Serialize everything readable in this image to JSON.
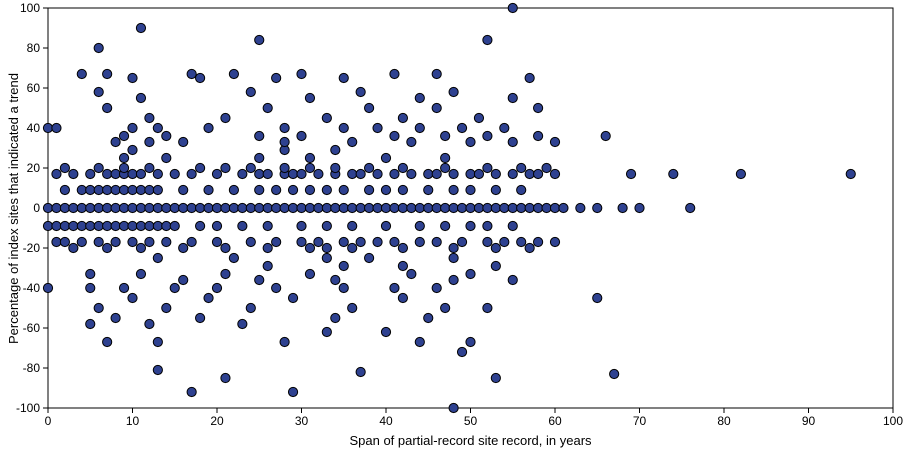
{
  "chart_data": {
    "type": "scatter",
    "title": "",
    "xlabel": "Span of partial-record site record, in years",
    "ylabel": "Percentage of index sites that indicated a trend",
    "xlim": [
      0,
      100
    ],
    "ylim": [
      -100,
      100
    ],
    "xticks": [
      0,
      10,
      20,
      30,
      40,
      50,
      60,
      70,
      80,
      90,
      100
    ],
    "yticks": [
      -100,
      -80,
      -60,
      -40,
      -20,
      0,
      20,
      40,
      60,
      80,
      100
    ],
    "grid": false,
    "legend": null,
    "marker": {
      "shape": "circle",
      "fill": "#2e4190",
      "stroke": "#000000",
      "radius": 4.6
    },
    "points": [
      [
        0,
        0
      ],
      [
        1,
        0
      ],
      [
        2,
        0
      ],
      [
        3,
        0
      ],
      [
        4,
        0
      ],
      [
        5,
        0
      ],
      [
        6,
        0
      ],
      [
        7,
        0
      ],
      [
        8,
        0
      ],
      [
        9,
        0
      ],
      [
        10,
        0
      ],
      [
        11,
        0
      ],
      [
        12,
        0
      ],
      [
        13,
        0
      ],
      [
        14,
        0
      ],
      [
        15,
        0
      ],
      [
        16,
        0
      ],
      [
        17,
        0
      ],
      [
        18,
        0
      ],
      [
        19,
        0
      ],
      [
        20,
        0
      ],
      [
        21,
        0
      ],
      [
        22,
        0
      ],
      [
        23,
        0
      ],
      [
        24,
        0
      ],
      [
        25,
        0
      ],
      [
        26,
        0
      ],
      [
        27,
        0
      ],
      [
        28,
        0
      ],
      [
        29,
        0
      ],
      [
        30,
        0
      ],
      [
        31,
        0
      ],
      [
        32,
        0
      ],
      [
        33,
        0
      ],
      [
        34,
        0
      ],
      [
        35,
        0
      ],
      [
        36,
        0
      ],
      [
        37,
        0
      ],
      [
        38,
        0
      ],
      [
        39,
        0
      ],
      [
        40,
        0
      ],
      [
        41,
        0
      ],
      [
        42,
        0
      ],
      [
        43,
        0
      ],
      [
        44,
        0
      ],
      [
        45,
        0
      ],
      [
        46,
        0
      ],
      [
        47,
        0
      ],
      [
        48,
        0
      ],
      [
        49,
        0
      ],
      [
        50,
        0
      ],
      [
        51,
        0
      ],
      [
        52,
        0
      ],
      [
        53,
        0
      ],
      [
        54,
        0
      ],
      [
        55,
        0
      ],
      [
        56,
        0
      ],
      [
        57,
        0
      ],
      [
        58,
        0
      ],
      [
        59,
        0
      ],
      [
        60,
        0
      ],
      [
        61,
        0
      ],
      [
        63,
        0
      ],
      [
        65,
        0
      ],
      [
        68,
        0
      ],
      [
        70,
        0
      ],
      [
        76,
        0
      ],
      [
        2,
        9
      ],
      [
        4,
        9
      ],
      [
        5,
        9
      ],
      [
        6,
        9
      ],
      [
        7,
        9
      ],
      [
        8,
        9
      ],
      [
        9,
        9
      ],
      [
        10,
        9
      ],
      [
        11,
        9
      ],
      [
        12,
        9
      ],
      [
        13,
        9
      ],
      [
        16,
        9
      ],
      [
        19,
        9
      ],
      [
        22,
        9
      ],
      [
        25,
        9
      ],
      [
        27,
        9
      ],
      [
        29,
        9
      ],
      [
        31,
        9
      ],
      [
        33,
        9
      ],
      [
        35,
        9
      ],
      [
        38,
        9
      ],
      [
        40,
        9
      ],
      [
        42,
        9
      ],
      [
        45,
        9
      ],
      [
        48,
        9
      ],
      [
        50,
        9
      ],
      [
        53,
        9
      ],
      [
        56,
        9
      ],
      [
        1,
        17
      ],
      [
        3,
        17
      ],
      [
        5,
        17
      ],
      [
        7,
        17
      ],
      [
        8,
        17
      ],
      [
        9,
        17
      ],
      [
        10,
        17
      ],
      [
        11,
        17
      ],
      [
        13,
        17
      ],
      [
        15,
        17
      ],
      [
        17,
        17
      ],
      [
        20,
        17
      ],
      [
        23,
        17
      ],
      [
        25,
        17
      ],
      [
        26,
        17
      ],
      [
        28,
        17
      ],
      [
        29,
        17
      ],
      [
        30,
        17
      ],
      [
        32,
        17
      ],
      [
        34,
        17
      ],
      [
        36,
        17
      ],
      [
        37,
        17
      ],
      [
        39,
        17
      ],
      [
        41,
        17
      ],
      [
        43,
        17
      ],
      [
        45,
        17
      ],
      [
        46,
        17
      ],
      [
        48,
        17
      ],
      [
        50,
        17
      ],
      [
        51,
        17
      ],
      [
        53,
        17
      ],
      [
        55,
        17
      ],
      [
        57,
        17
      ],
      [
        58,
        17
      ],
      [
        60,
        17
      ],
      [
        69,
        17
      ],
      [
        74,
        17
      ],
      [
        82,
        17
      ],
      [
        95,
        17
      ],
      [
        2,
        20
      ],
      [
        6,
        20
      ],
      [
        9,
        20
      ],
      [
        12,
        20
      ],
      [
        18,
        20
      ],
      [
        21,
        20
      ],
      [
        24,
        20
      ],
      [
        28,
        20
      ],
      [
        31,
        20
      ],
      [
        34,
        20
      ],
      [
        38,
        20
      ],
      [
        42,
        20
      ],
      [
        47,
        20
      ],
      [
        52,
        20
      ],
      [
        56,
        20
      ],
      [
        59,
        20
      ],
      [
        9,
        25
      ],
      [
        14,
        25
      ],
      [
        25,
        25
      ],
      [
        31,
        25
      ],
      [
        40,
        25
      ],
      [
        47,
        25
      ],
      [
        10,
        29
      ],
      [
        28,
        29
      ],
      [
        34,
        29
      ],
      [
        8,
        33
      ],
      [
        12,
        33
      ],
      [
        16,
        33
      ],
      [
        28,
        33
      ],
      [
        36,
        33
      ],
      [
        43,
        33
      ],
      [
        50,
        33
      ],
      [
        55,
        33
      ],
      [
        60,
        33
      ],
      [
        9,
        36
      ],
      [
        14,
        36
      ],
      [
        25,
        36
      ],
      [
        30,
        36
      ],
      [
        41,
        36
      ],
      [
        47,
        36
      ],
      [
        52,
        36
      ],
      [
        58,
        36
      ],
      [
        66,
        36
      ],
      [
        0,
        40
      ],
      [
        1,
        40
      ],
      [
        10,
        40
      ],
      [
        13,
        40
      ],
      [
        19,
        40
      ],
      [
        28,
        40
      ],
      [
        35,
        40
      ],
      [
        39,
        40
      ],
      [
        44,
        40
      ],
      [
        49,
        40
      ],
      [
        54,
        40
      ],
      [
        12,
        45
      ],
      [
        21,
        45
      ],
      [
        33,
        45
      ],
      [
        42,
        45
      ],
      [
        51,
        45
      ],
      [
        7,
        50
      ],
      [
        26,
        50
      ],
      [
        38,
        50
      ],
      [
        46,
        50
      ],
      [
        58,
        50
      ],
      [
        11,
        55
      ],
      [
        31,
        55
      ],
      [
        44,
        55
      ],
      [
        55,
        55
      ],
      [
        6,
        58
      ],
      [
        24,
        58
      ],
      [
        37,
        58
      ],
      [
        48,
        58
      ],
      [
        10,
        65
      ],
      [
        18,
        65
      ],
      [
        27,
        65
      ],
      [
        35,
        65
      ],
      [
        57,
        65
      ],
      [
        4,
        67
      ],
      [
        7,
        67
      ],
      [
        17,
        67
      ],
      [
        22,
        67
      ],
      [
        30,
        67
      ],
      [
        41,
        67
      ],
      [
        46,
        67
      ],
      [
        6,
        80
      ],
      [
        25,
        84
      ],
      [
        52,
        84
      ],
      [
        11,
        90
      ],
      [
        55,
        100
      ],
      [
        0,
        -9
      ],
      [
        1,
        -9
      ],
      [
        2,
        -9
      ],
      [
        3,
        -9
      ],
      [
        4,
        -9
      ],
      [
        5,
        -9
      ],
      [
        6,
        -9
      ],
      [
        7,
        -9
      ],
      [
        8,
        -9
      ],
      [
        9,
        -9
      ],
      [
        10,
        -9
      ],
      [
        11,
        -9
      ],
      [
        12,
        -9
      ],
      [
        13,
        -9
      ],
      [
        14,
        -9
      ],
      [
        15,
        -9
      ],
      [
        18,
        -9
      ],
      [
        20,
        -9
      ],
      [
        23,
        -9
      ],
      [
        26,
        -9
      ],
      [
        30,
        -9
      ],
      [
        33,
        -9
      ],
      [
        36,
        -9
      ],
      [
        40,
        -9
      ],
      [
        44,
        -9
      ],
      [
        47,
        -9
      ],
      [
        50,
        -9
      ],
      [
        52,
        -9
      ],
      [
        55,
        -9
      ],
      [
        1,
        -17
      ],
      [
        2,
        -17
      ],
      [
        4,
        -17
      ],
      [
        6,
        -17
      ],
      [
        8,
        -17
      ],
      [
        10,
        -17
      ],
      [
        12,
        -17
      ],
      [
        14,
        -17
      ],
      [
        17,
        -17
      ],
      [
        20,
        -17
      ],
      [
        24,
        -17
      ],
      [
        27,
        -17
      ],
      [
        30,
        -17
      ],
      [
        32,
        -17
      ],
      [
        35,
        -17
      ],
      [
        37,
        -17
      ],
      [
        39,
        -17
      ],
      [
        41,
        -17
      ],
      [
        44,
        -17
      ],
      [
        46,
        -17
      ],
      [
        49,
        -17
      ],
      [
        52,
        -17
      ],
      [
        54,
        -17
      ],
      [
        56,
        -17
      ],
      [
        58,
        -17
      ],
      [
        60,
        -17
      ],
      [
        3,
        -20
      ],
      [
        7,
        -20
      ],
      [
        11,
        -20
      ],
      [
        16,
        -20
      ],
      [
        21,
        -20
      ],
      [
        26,
        -20
      ],
      [
        31,
        -20
      ],
      [
        33,
        -20
      ],
      [
        36,
        -20
      ],
      [
        42,
        -20
      ],
      [
        48,
        -20
      ],
      [
        53,
        -20
      ],
      [
        57,
        -20
      ],
      [
        13,
        -25
      ],
      [
        22,
        -25
      ],
      [
        33,
        -25
      ],
      [
        38,
        -25
      ],
      [
        48,
        -25
      ],
      [
        26,
        -29
      ],
      [
        35,
        -29
      ],
      [
        42,
        -29
      ],
      [
        53,
        -29
      ],
      [
        5,
        -33
      ],
      [
        11,
        -33
      ],
      [
        21,
        -33
      ],
      [
        31,
        -33
      ],
      [
        43,
        -33
      ],
      [
        50,
        -33
      ],
      [
        16,
        -36
      ],
      [
        25,
        -36
      ],
      [
        34,
        -36
      ],
      [
        48,
        -36
      ],
      [
        55,
        -36
      ],
      [
        0,
        -40
      ],
      [
        5,
        -40
      ],
      [
        9,
        -40
      ],
      [
        15,
        -40
      ],
      [
        20,
        -40
      ],
      [
        27,
        -40
      ],
      [
        35,
        -40
      ],
      [
        41,
        -40
      ],
      [
        46,
        -40
      ],
      [
        10,
        -45
      ],
      [
        19,
        -45
      ],
      [
        29,
        -45
      ],
      [
        42,
        -45
      ],
      [
        65,
        -45
      ],
      [
        6,
        -50
      ],
      [
        14,
        -50
      ],
      [
        24,
        -50
      ],
      [
        36,
        -50
      ],
      [
        47,
        -50
      ],
      [
        52,
        -50
      ],
      [
        8,
        -55
      ],
      [
        18,
        -55
      ],
      [
        34,
        -55
      ],
      [
        45,
        -55
      ],
      [
        5,
        -58
      ],
      [
        12,
        -58
      ],
      [
        23,
        -58
      ],
      [
        33,
        -62
      ],
      [
        40,
        -62
      ],
      [
        7,
        -67
      ],
      [
        13,
        -67
      ],
      [
        28,
        -67
      ],
      [
        44,
        -67
      ],
      [
        50,
        -67
      ],
      [
        49,
        -72
      ],
      [
        13,
        -81
      ],
      [
        37,
        -82
      ],
      [
        67,
        -83
      ],
      [
        21,
        -85
      ],
      [
        53,
        -85
      ],
      [
        17,
        -92
      ],
      [
        29,
        -92
      ],
      [
        48,
        -100
      ]
    ]
  }
}
